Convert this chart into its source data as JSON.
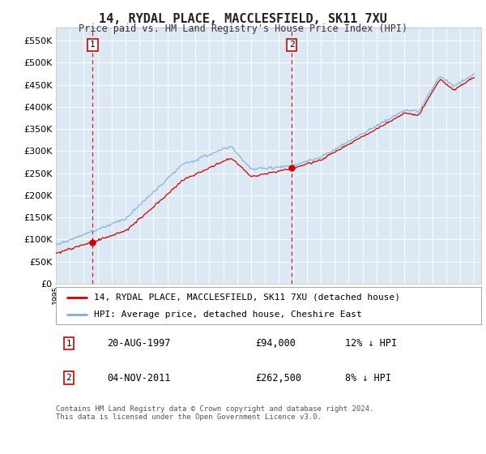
{
  "title": "14, RYDAL PLACE, MACCLESFIELD, SK11 7XU",
  "subtitle": "Price paid vs. HM Land Registry's House Price Index (HPI)",
  "background_color": "#ffffff",
  "plot_bg_color": "#dce9f5",
  "red_line_label": "14, RYDAL PLACE, MACCLESFIELD, SK11 7XU (detached house)",
  "blue_line_label": "HPI: Average price, detached house, Cheshire East",
  "sale1_date": "20-AUG-1997",
  "sale1_price": 94000,
  "sale1_pct": "12% ↓ HPI",
  "sale2_date": "04-NOV-2011",
  "sale2_price": 262500,
  "sale2_pct": "8% ↓ HPI",
  "footer": "Contains HM Land Registry data © Crown copyright and database right 2024.\nThis data is licensed under the Open Government Licence v3.0.",
  "ylim": [
    0,
    580000
  ],
  "yticks": [
    0,
    50000,
    100000,
    150000,
    200000,
    250000,
    300000,
    350000,
    400000,
    450000,
    500000,
    550000
  ],
  "xlim_start": 1995.0,
  "xlim_end": 2025.5,
  "red_color": "#cc0000",
  "blue_color": "#7ab0d4",
  "vline_color": "#cc0000",
  "vline_x1": 1997.637,
  "vline_x2": 2011.915,
  "marker_y1": 94000,
  "marker_y2": 262500
}
